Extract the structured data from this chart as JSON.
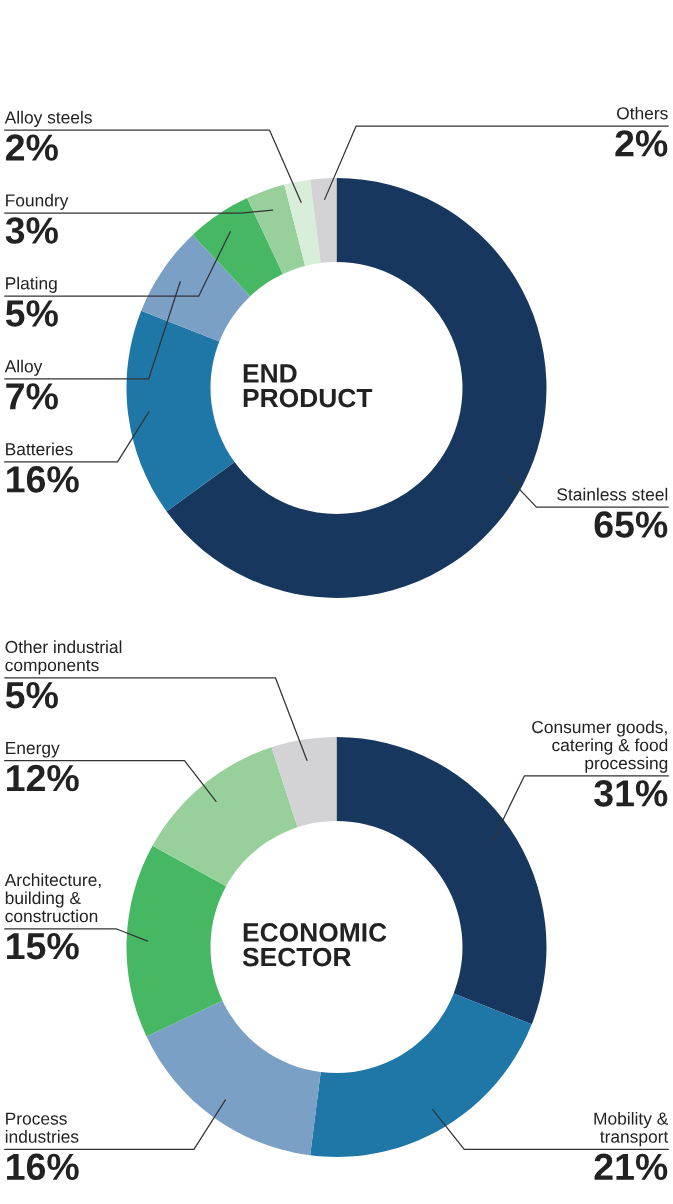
{
  "chart_data": [
    {
      "type": "donut",
      "title": "END\nPRODUCT",
      "categories": [
        "Stainless steel",
        "Batteries",
        "Alloy",
        "Plating",
        "Foundry",
        "Alloy steels",
        "Others"
      ],
      "values": [
        65,
        16,
        7,
        5,
        3,
        2,
        2
      ],
      "value_labels": [
        "65%",
        "16%",
        "7%",
        "5%",
        "3%",
        "2%",
        "2%"
      ],
      "colors": [
        "#17375e",
        "#1f77a8",
        "#7ba0c6",
        "#46b864",
        "#98d09c",
        "#d8eed9",
        "#d3d3d5"
      ]
    },
    {
      "type": "donut",
      "title": "ECONOMIC\nSECTOR",
      "categories": [
        "Consumer goods,\ncatering & food\nprocessing",
        "Mobility &\ntransport",
        "Process\nindustries",
        "Architecture,\nbuilding &\nconstruction",
        "Energy",
        "Other industrial\ncomponents"
      ],
      "values": [
        31,
        21,
        16,
        15,
        12,
        5
      ],
      "value_labels": [
        "31%",
        "21%",
        "16%",
        "15%",
        "12%",
        "5%"
      ],
      "colors": [
        "#17375e",
        "#1f77a8",
        "#7ba0c6",
        "#46b864",
        "#98d09c",
        "#d3d3d5"
      ]
    }
  ]
}
